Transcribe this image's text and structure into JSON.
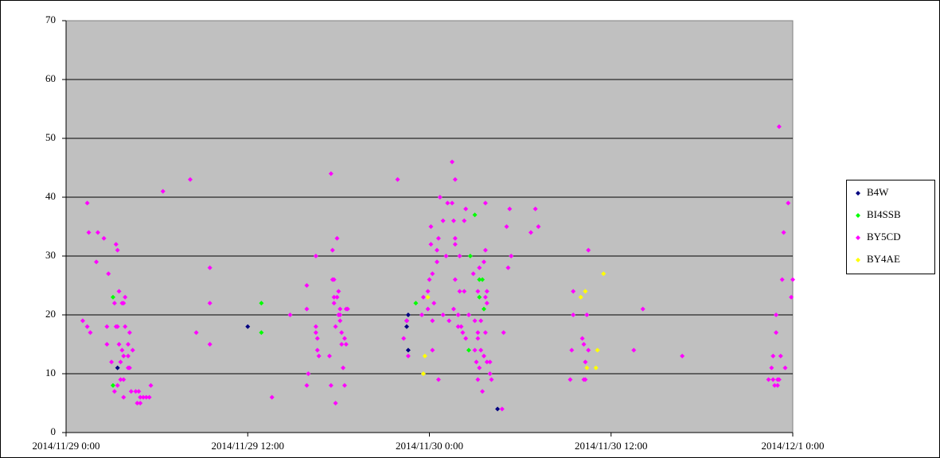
{
  "chart_data": {
    "type": "scatter",
    "xlim": [
      0,
      48
    ],
    "xticks": [
      {
        "value": 0,
        "label": "2014/11/29 0:00"
      },
      {
        "value": 12,
        "label": "2014/11/29 12:00"
      },
      {
        "value": 24,
        "label": "2014/11/30 0:00"
      },
      {
        "value": 36,
        "label": "2014/11/30 12:00"
      },
      {
        "value": 48,
        "label": "2014/12/1 0:00"
      }
    ],
    "ylim": [
      0,
      70
    ],
    "yticks": [
      0,
      10,
      20,
      30,
      40,
      50,
      60,
      70
    ],
    "grid": true,
    "legend": "right",
    "series": [
      {
        "name": "B4W",
        "color": "#000080",
        "x": [
          3.4,
          12.0,
          22.6,
          22.5,
          22.5,
          22.6,
          28.5
        ],
        "y": [
          11,
          18,
          20,
          19,
          18,
          14,
          4
        ]
      },
      {
        "name": "BI4SSB",
        "color": "#00ff00",
        "x": [
          3.1,
          3.1,
          12.9,
          12.9,
          23.1,
          26.7,
          27.0,
          27.3,
          27.5,
          27.3,
          26.6,
          27.6
        ],
        "y": [
          23,
          8,
          22,
          17,
          22,
          30,
          37,
          26,
          26,
          23,
          14,
          21
        ]
      },
      {
        "name": "BY5CD",
        "color": "#ff00ff",
        "x": [
          1.1,
          1.4,
          1.5,
          1.4,
          1.6,
          2.0,
          2.1,
          2.5,
          2.7,
          2.7,
          2.8,
          3.0,
          3.2,
          3.3,
          3.4,
          3.3,
          3.4,
          3.2,
          3.4,
          3.5,
          3.6,
          3.5,
          3.7,
          3.7,
          3.8,
          3.8,
          3.9,
          3.6,
          3.8,
          3.8,
          3.9,
          4.1,
          4.2,
          4.4,
          4.2,
          4.1,
          4.1,
          4.3,
          4.6,
          4.7,
          4.9,
          4.8,
          4.9,
          5.1,
          5.3,
          5.5,
          5.6,
          6.4,
          8.2,
          8.6,
          9.5,
          9.5,
          9.5,
          13.6,
          14.8,
          15.9,
          15.9,
          16.0,
          15.9,
          16.5,
          16.5,
          16.5,
          16.6,
          16.6,
          16.7,
          17.4,
          17.5,
          17.5,
          17.6,
          17.6,
          17.7,
          17.7,
          17.7,
          17.8,
          17.8,
          17.9,
          17.9,
          18.0,
          18.0,
          18.1,
          18.1,
          18.1,
          18.2,
          18.2,
          18.3,
          18.4,
          18.4,
          18.5,
          18.5,
          18.6,
          21.9,
          22.3,
          22.5,
          22.6,
          23.5,
          23.6,
          23.9,
          23.9,
          24.0,
          24.1,
          24.1,
          24.2,
          24.2,
          24.2,
          24.3,
          24.5,
          24.5,
          24.6,
          24.6,
          24.7,
          24.9,
          24.9,
          25.1,
          25.2,
          25.3,
          25.5,
          25.5,
          25.6,
          25.6,
          25.7,
          25.7,
          25.7,
          25.7,
          25.9,
          25.9,
          26.0,
          26.0,
          26.1,
          26.2,
          26.3,
          26.3,
          26.4,
          26.4,
          26.6,
          26.9,
          27.0,
          27.0,
          27.1,
          27.2,
          27.2,
          27.2,
          27.2,
          27.3,
          27.3,
          27.4,
          27.4,
          27.5,
          27.6,
          27.6,
          27.7,
          27.7,
          27.7,
          27.7,
          27.8,
          27.8,
          27.8,
          28.0,
          28.0,
          28.1,
          28.8,
          28.9,
          29.1,
          29.2,
          29.3,
          29.4,
          30.7,
          31.0,
          31.2,
          33.3,
          33.4,
          33.5,
          33.5,
          34.1,
          34.2,
          34.2,
          34.3,
          34.3,
          34.4,
          34.5,
          34.5,
          37.5,
          38.1,
          40.7,
          46.4,
          46.6,
          46.7,
          46.7,
          46.8,
          46.9,
          46.9,
          47.0,
          47.0,
          47.1,
          47.1,
          47.2,
          47.3,
          47.4,
          47.5,
          47.7,
          47.9,
          48.0
        ],
        "y": [
          19,
          39,
          34,
          18,
          17,
          29,
          34,
          33,
          18,
          15,
          27,
          12,
          22,
          32,
          31,
          18,
          18,
          7,
          8,
          24,
          12,
          15,
          22,
          14,
          13,
          22,
          23,
          9,
          9,
          6,
          18,
          11,
          11,
          14,
          17,
          15,
          13,
          7,
          7,
          5,
          5,
          7,
          6,
          6,
          6,
          6,
          8,
          41,
          43,
          17,
          28,
          22,
          15,
          6,
          20,
          25,
          21,
          10,
          8,
          30,
          18,
          17,
          16,
          14,
          13,
          13,
          8,
          44,
          31,
          26,
          26,
          23,
          22,
          18,
          5,
          33,
          23,
          20,
          24,
          21,
          20,
          19,
          17,
          15,
          11,
          16,
          8,
          21,
          15,
          21,
          43,
          16,
          19,
          13,
          20,
          23,
          24,
          21,
          26,
          35,
          32,
          27,
          14,
          19,
          22,
          31,
          29,
          33,
          9,
          40,
          36,
          20,
          30,
          39,
          19,
          46,
          39,
          36,
          21,
          43,
          32,
          33,
          26,
          20,
          18,
          30,
          24,
          18,
          17,
          36,
          24,
          38,
          16,
          20,
          27,
          19,
          14,
          12,
          16,
          9,
          17,
          24,
          28,
          11,
          19,
          14,
          7,
          13,
          29,
          39,
          31,
          23,
          17,
          24,
          22,
          12,
          12,
          10,
          9,
          4,
          17,
          35,
          28,
          38,
          30,
          34,
          38,
          35,
          9,
          14,
          20,
          24,
          16,
          15,
          9,
          12,
          9,
          20,
          31,
          14,
          14,
          21,
          13,
          9,
          11,
          13,
          9,
          8,
          20,
          17,
          9,
          8,
          9,
          52,
          13,
          26,
          34,
          11,
          39,
          23,
          26
        ]
      },
      {
        "name": "BY4AE",
        "color": "#ffff00",
        "x": [
          23.6,
          23.7,
          23.9,
          34.0,
          34.3,
          34.4,
          35.0,
          35.1,
          35.5
        ],
        "y": [
          10,
          13,
          23,
          23,
          24,
          11,
          11,
          14,
          27
        ]
      }
    ]
  }
}
